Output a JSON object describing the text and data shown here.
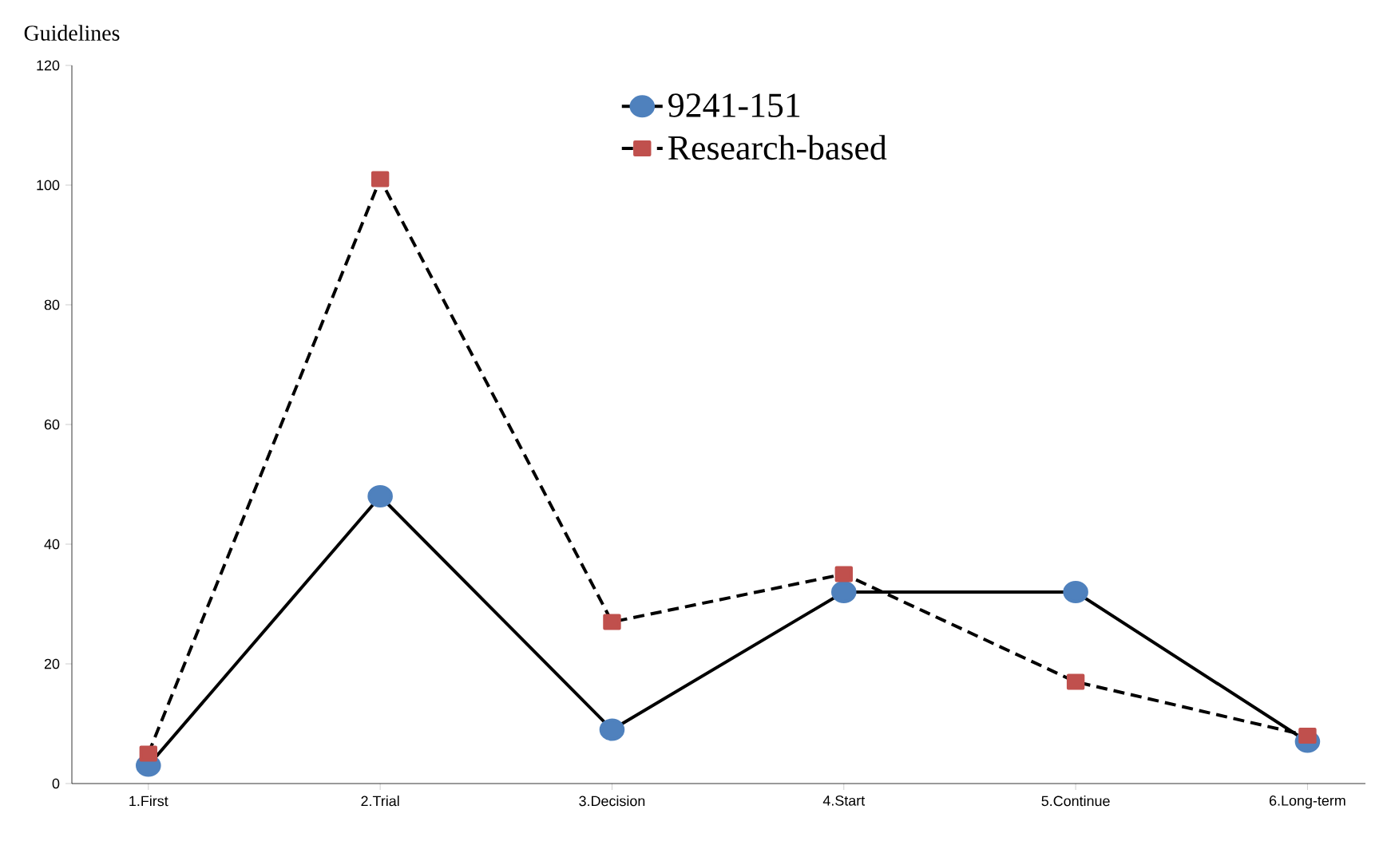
{
  "chart_data": {
    "type": "line",
    "ylabel": "Guidelines",
    "categories": [
      "1.First",
      "2.Trial",
      "3.Decision",
      "4.Start",
      "5.Continue",
      "6.Long-term"
    ],
    "series": [
      {
        "name": "9241-151",
        "color": "#4f81bd",
        "marker": "circle",
        "line_style": "solid",
        "values": [
          3,
          48,
          9,
          32,
          32,
          7
        ]
      },
      {
        "name": "Research-based",
        "color": "#c0504d",
        "marker": "square",
        "line_style": "dashed",
        "values": [
          5,
          101,
          27,
          35,
          17,
          8
        ]
      }
    ],
    "ylim": [
      0,
      120
    ],
    "yticks": [
      0,
      20,
      40,
      60,
      80,
      100,
      120
    ],
    "legend": "top right"
  }
}
